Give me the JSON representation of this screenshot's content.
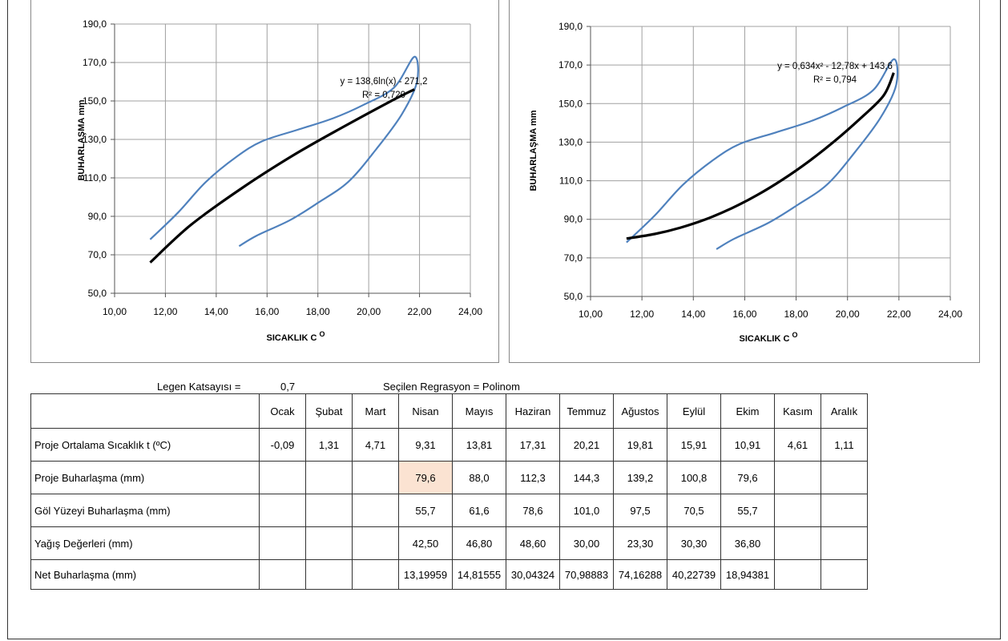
{
  "chart_data": [
    {
      "type": "line",
      "xlabel": "SICAKLIK C",
      "xlabel_superscript": "O",
      "ylabel": "BUHARLAŞMA mm",
      "xlim": [
        10,
        24
      ],
      "ylim": [
        50,
        190
      ],
      "xticks": [
        "10,00",
        "12,00",
        "14,00",
        "16,00",
        "18,00",
        "20,00",
        "22,00",
        "24,00"
      ],
      "yticks": [
        "50,0",
        "70,0",
        "90,0",
        "110,0",
        "130,0",
        "150,0",
        "170,0",
        "190,0"
      ],
      "grid": true,
      "loop_color": "#4f81bd",
      "trend_color": "#000000",
      "series": [
        {
          "points": [
            [
              11.4,
              78
            ],
            [
              12.5,
              92
            ],
            [
              13.6,
              108
            ],
            [
              14.8,
              121
            ],
            [
              15.8,
              129
            ],
            [
              17.2,
              135
            ],
            [
              18.6,
              141
            ],
            [
              19.8,
              148
            ],
            [
              21.0,
              157
            ],
            [
              21.8,
              173
            ],
            [
              21.9,
              160
            ],
            [
              21.3,
              143
            ],
            [
              20.3,
              125
            ],
            [
              19.2,
              108
            ],
            [
              18.0,
              97
            ],
            [
              16.9,
              88
            ],
            [
              15.6,
              80
            ],
            [
              14.9,
              74.5
            ]
          ]
        },
        {
          "points": [
            [
              11.4,
              66
            ],
            [
              13.0,
              85.5
            ],
            [
              15.0,
              104.6
            ],
            [
              17.0,
              121.5
            ],
            [
              19.0,
              136.5
            ],
            [
              21.0,
              150.8
            ],
            [
              21.8,
              156
            ]
          ]
        }
      ],
      "equation": "y = 138,6ln(x) - 271,2",
      "r_squared": "R² = 0,720"
    },
    {
      "type": "line",
      "xlabel": "SICAKLIK C",
      "xlabel_superscript": "O",
      "ylabel": "BUHARLAŞMA mm",
      "xlim": [
        10,
        24
      ],
      "ylim": [
        50,
        190
      ],
      "xticks": [
        "10,00",
        "12,00",
        "14,00",
        "16,00",
        "18,00",
        "20,00",
        "22,00",
        "24,00"
      ],
      "yticks": [
        "50,0",
        "70,0",
        "90,0",
        "110,0",
        "130,0",
        "150,0",
        "170,0",
        "190,0"
      ],
      "grid": true,
      "loop_color": "#4f81bd",
      "trend_color": "#000000",
      "series": [
        {
          "points": [
            [
              11.4,
              78
            ],
            [
              12.5,
              92
            ],
            [
              13.6,
              108
            ],
            [
              14.8,
              121
            ],
            [
              15.8,
              129
            ],
            [
              17.2,
              135
            ],
            [
              18.6,
              141
            ],
            [
              19.8,
              148
            ],
            [
              21.0,
              157
            ],
            [
              21.8,
              173
            ],
            [
              21.9,
              160
            ],
            [
              21.3,
              143
            ],
            [
              20.3,
              125
            ],
            [
              19.2,
              108
            ],
            [
              18.0,
              97
            ],
            [
              16.9,
              88
            ],
            [
              15.6,
              80
            ],
            [
              14.9,
              74.5
            ]
          ]
        },
        {
          "points": [
            [
              11.4,
              80
            ],
            [
              12.5,
              82.4
            ],
            [
              13.5,
              85.7
            ],
            [
              14.5,
              90.1
            ],
            [
              15.5,
              95.8
            ],
            [
              16.5,
              102.7
            ],
            [
              17.5,
              110.8
            ],
            [
              18.5,
              120.1
            ],
            [
              19.5,
              130.6
            ],
            [
              20.5,
              142.3
            ],
            [
              21.4,
              154.1
            ],
            [
              21.8,
              166
            ]
          ]
        }
      ],
      "equation": "y = 0,634x² - 12,78x + 143,6",
      "r_squared": "R² = 0,794"
    }
  ],
  "info": {
    "legen_label": "Legen Katsayısı =",
    "legen_value": "0,7",
    "regression_label": "Seçilen Regrasyon = Polinom"
  },
  "table": {
    "months": [
      "Ocak",
      "Şubat",
      "Mart",
      "Nisan",
      "Mayıs",
      "Haziran",
      "Temmuz",
      "Ağustos",
      "Eylül",
      "Ekim",
      "Kasım",
      "Aralık"
    ],
    "rows": [
      {
        "label": "Proje Ortalama Sıcaklık   t (ºC)",
        "values": [
          "-0,09",
          "1,31",
          "4,71",
          "9,31",
          "13,81",
          "17,31",
          "20,21",
          "19,81",
          "15,91",
          "10,91",
          "4,61",
          "1,11"
        ]
      },
      {
        "label": "Proje Buharlaşma (mm)",
        "values": [
          "",
          "",
          "",
          "79,6",
          "88,0",
          "112,3",
          "144,3",
          "139,2",
          "100,8",
          "79,6",
          "",
          ""
        ]
      },
      {
        "label": "Göl Yüzeyi Buharlaşma (mm)",
        "values": [
          "",
          "",
          "",
          "55,7",
          "61,6",
          "78,6",
          "101,0",
          "97,5",
          "70,5",
          "55,7",
          "",
          ""
        ]
      },
      {
        "label": "Yağış Değerleri (mm)",
        "values": [
          "",
          "",
          "",
          "42,50",
          "46,80",
          "48,60",
          "30,00",
          "23,30",
          "30,30",
          "36,80",
          "",
          ""
        ]
      },
      {
        "label": "Net Buharlaşma (mm)",
        "values": [
          "",
          "",
          "",
          "13,19959",
          "14,81555",
          "30,04324",
          "70,98883",
          "74,16288",
          "40,22739",
          "18,94381",
          "",
          ""
        ]
      }
    ],
    "highlight_color": "#fbe3d2"
  }
}
